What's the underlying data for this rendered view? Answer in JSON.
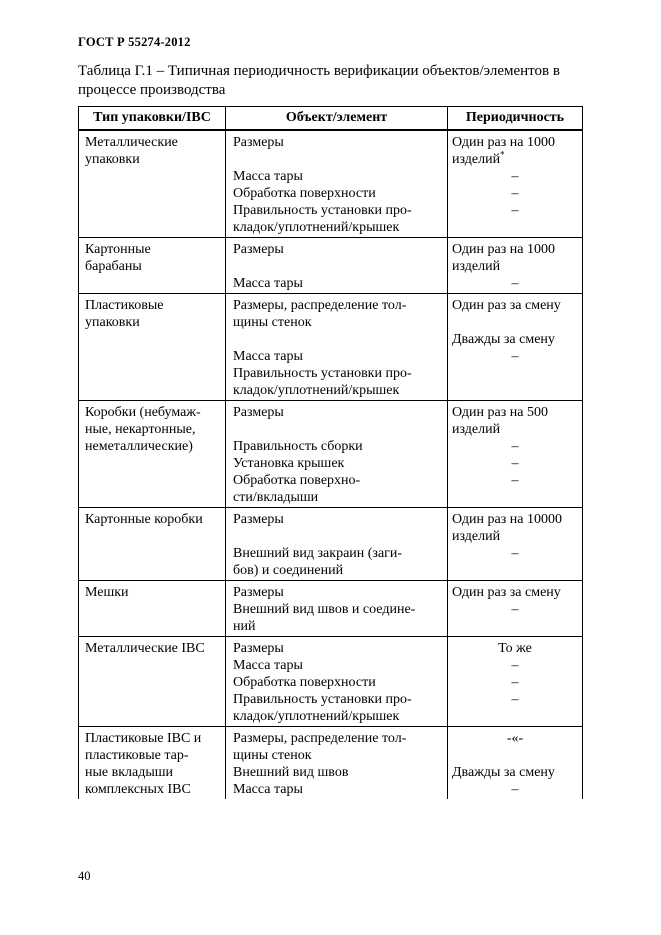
{
  "page": {
    "doc_number": "ГОСТ Р 55274-2012",
    "table_caption": "Таблица Г.1 – Типичная периодичность верификации объектов/элементов в процессе производства",
    "page_number": "40"
  },
  "table": {
    "headers": [
      "Тип упаковки/IBC",
      "Объект/элемент",
      "Периодичность"
    ],
    "rows": [
      {
        "packaging": [
          "Металлические",
          "упаковки"
        ],
        "object": [
          "Размеры",
          "",
          "Масса тары",
          "Обработка поверхности",
          "Правильность установки про-",
          "кладок/уплотнений/крышек"
        ],
        "period": [
          {
            "t": "Один раз на 1000"
          },
          {
            "t": "изделий",
            "sup": "*"
          },
          {
            "t": "–",
            "c": true
          },
          {
            "t": "–",
            "c": true
          },
          {
            "t": "–",
            "c": true
          },
          {
            "t": ""
          }
        ]
      },
      {
        "packaging": [
          "Картонные",
          "барабаны"
        ],
        "object": [
          "Размеры",
          "",
          "Масса тары"
        ],
        "period": [
          {
            "t": "Один раз на 1000"
          },
          {
            "t": "изделий"
          },
          {
            "t": "–",
            "c": true
          }
        ]
      },
      {
        "packaging": [
          "Пластиковые",
          "упаковки"
        ],
        "object": [
          "Размеры, распределение тол-",
          "щины стенок",
          "",
          "Масса тары",
          "Правильность установки про-",
          "кладок/уплотнений/крышек"
        ],
        "period": [
          {
            "t": "Один раз за смену"
          },
          {
            "t": ""
          },
          {
            "t": "Дважды за смену"
          },
          {
            "t": "–",
            "c": true
          },
          {
            "t": ""
          },
          {
            "t": ""
          }
        ]
      },
      {
        "packaging": [
          "Коробки (небумаж-",
          "ные, некартонные,",
          "неметаллические)"
        ],
        "object": [
          "Размеры",
          "",
          "Правильность сборки",
          "Установка крышек",
          "Обработка поверхно-",
          "сти/вкладыши"
        ],
        "period": [
          {
            "t": "Один раз на 500"
          },
          {
            "t": "изделий"
          },
          {
            "t": "–",
            "c": true
          },
          {
            "t": "–",
            "c": true
          },
          {
            "t": "–",
            "c": true
          },
          {
            "t": ""
          }
        ]
      },
      {
        "packaging": [
          "Картонные коробки"
        ],
        "object": [
          "Размеры",
          "",
          "Внешний вид закраин (заги-",
          "бов) и соединений"
        ],
        "period": [
          {
            "t": "Один раз на 10000"
          },
          {
            "t": "изделий"
          },
          {
            "t": "–",
            "c": true
          },
          {
            "t": ""
          }
        ]
      },
      {
        "packaging": [
          "Мешки"
        ],
        "object": [
          "Размеры",
          "Внешний вид швов и соедине-",
          "ний"
        ],
        "period": [
          {
            "t": "Один раз за смену"
          },
          {
            "t": "–",
            "c": true
          },
          {
            "t": ""
          }
        ]
      },
      {
        "packaging": [
          "Металлические IBC"
        ],
        "object": [
          "Размеры",
          "Масса тары",
          "Обработка поверхности",
          "Правильность установки про-",
          "кладок/уплотнений/крышек"
        ],
        "period": [
          {
            "t": "То же",
            "c": true
          },
          {
            "t": "–",
            "c": true
          },
          {
            "t": "–",
            "c": true
          },
          {
            "t": "–",
            "c": true
          },
          {
            "t": ""
          }
        ]
      },
      {
        "packaging": [
          "Пластиковые IBC и",
          "пластиковые тар-",
          "ные вкладыши",
          "комплексных IBC"
        ],
        "object": [
          "Размеры, распределение тол-",
          "щины стенок",
          "Внешний вид швов",
          "Масса тары"
        ],
        "period": [
          {
            "t": "-«-",
            "c": true
          },
          {
            "t": ""
          },
          {
            "t": "Дважды за смену"
          },
          {
            "t": "–",
            "c": true
          }
        ]
      }
    ]
  }
}
